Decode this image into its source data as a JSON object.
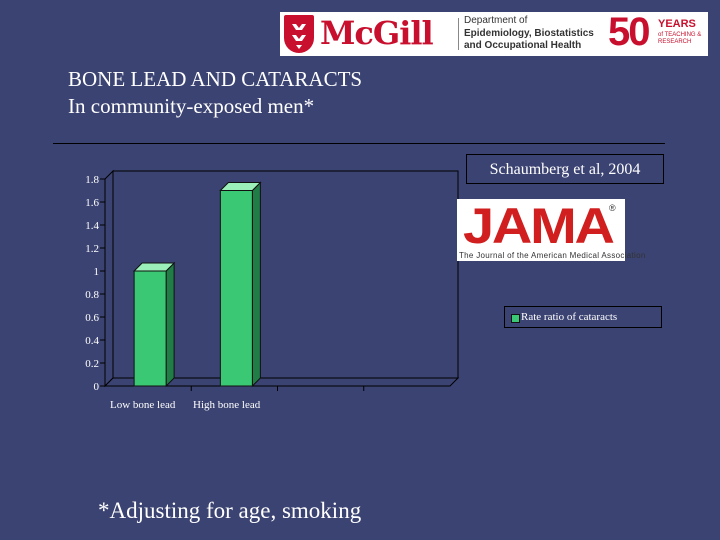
{
  "header": {
    "logo_text": "McGill",
    "department_lines": [
      "Department of",
      "Epidemiology, Biostatistics",
      "and Occupational Health"
    ],
    "anniversary_number": "50",
    "anniversary_word": "YEARS",
    "anniversary_sub": "of TEACHING & RESEARCH",
    "accent_color": "#c8102e"
  },
  "slide": {
    "title_line1": "BONE LEAD AND CATARACTS",
    "title_line2": "In community-exposed men*",
    "citation": "Schaumberg  et al, 2004",
    "jama_word": "JAMA",
    "jama_reg": "®",
    "jama_subtitle": "The Journal of the American Medical Association",
    "footnote": "*Adjusting for age, smoking",
    "background_color": "#3b4372"
  },
  "chart_data": {
    "type": "bar",
    "categories": [
      "Low bone lead",
      "High bone lead"
    ],
    "series": [
      {
        "name": "Rate ratio of cataracts",
        "values": [
          1.0,
          1.7
        ],
        "color": "#3ac874"
      }
    ],
    "ylim": [
      0,
      1.8
    ],
    "yticks": [
      "0",
      "0.2",
      "0.4",
      "0.6",
      "0.8",
      "1",
      "1.2",
      "1.4",
      "1.6",
      "1.8"
    ],
    "category_slots": 4,
    "grid": false,
    "legend_position": "right",
    "style": "3d"
  }
}
